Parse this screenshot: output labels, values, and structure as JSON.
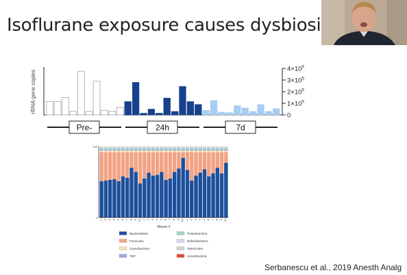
{
  "slide": {
    "title": "Isoflurane exposure causes dysbiosis",
    "citation": "Serbanescu et al., 2019 Anesth Analg"
  },
  "webcam": {
    "description_icon": "presenter-video-icon"
  },
  "colors": {
    "pre": "#ffffff",
    "h24": "#17418c",
    "d7": "#a9cdf2",
    "axis": "#222222",
    "bacteroidetes": "#1d4f9c",
    "firmicutes": "#f2a384",
    "cyanobacteria": "#f4e2b4",
    "tm7": "#a9a7d6",
    "proteobacteria": "#9fd6c6",
    "deferribacteres": "#d8d3ea",
    "tenericutes": "#d2d2d2",
    "actinobacteria": "#e34d38"
  },
  "chart_data": [
    {
      "type": "bar",
      "ylabel": "rRNA gene copies",
      "ylim": [
        0,
        400000
      ],
      "y_ticks": [
        0,
        100000,
        200000,
        300000,
        400000
      ],
      "y_tick_labels": [
        {
          "base": "0",
          "exp": ""
        },
        {
          "base": "1×10",
          "exp": "5"
        },
        {
          "base": "2×10",
          "exp": "5"
        },
        {
          "base": "3×10",
          "exp": "5"
        },
        {
          "base": "4×10",
          "exp": "5"
        }
      ],
      "groups": [
        {
          "label": "Pre-",
          "color_key": "pre",
          "values": [
            115000,
            115000,
            150000,
            30000,
            375000,
            30000,
            290000,
            40000,
            30000,
            65000
          ]
        },
        {
          "label": "24h",
          "color_key": "h24",
          "values": [
            115000,
            280000,
            15000,
            50000,
            15000,
            145000,
            30000,
            245000,
            115000,
            90000
          ]
        },
        {
          "label": "7d",
          "color_key": "d7",
          "values": [
            40000,
            125000,
            25000,
            20000,
            80000,
            60000,
            30000,
            90000,
            30000,
            55000
          ]
        }
      ]
    },
    {
      "type": "bar",
      "stacked": true,
      "xlabel": "Mouse #",
      "ylim": [
        0,
        100
      ],
      "y_ticks": [
        0,
        100
      ],
      "categories": [
        "1",
        "2",
        "3",
        "4",
        "5",
        "6",
        "7",
        "8",
        "9",
        "10",
        "1",
        "2",
        "3",
        "4",
        "5",
        "6",
        "7",
        "8",
        "9",
        "10",
        "1",
        "2",
        "3",
        "4",
        "5",
        "6",
        "7",
        "8",
        "9",
        "10"
      ],
      "series": [
        {
          "name": "Bacteroidetes",
          "color_key": "bacteroidetes",
          "values": [
            51,
            52,
            53,
            54,
            51,
            58,
            56,
            70,
            64,
            48,
            55,
            63,
            59,
            60,
            64,
            53,
            55,
            64,
            69,
            84,
            67,
            52,
            59,
            63,
            68,
            58,
            62,
            70,
            62,
            77
          ]
        },
        {
          "name": "Firmicutes",
          "color_key": "firmicutes",
          "values": [
            41,
            40,
            39,
            38,
            41,
            34,
            36,
            22,
            28,
            44,
            37,
            29,
            33,
            32,
            28,
            39,
            37,
            28,
            23,
            8,
            25,
            40,
            33,
            29,
            24,
            34,
            30,
            22,
            30,
            15
          ]
        },
        {
          "name": "Cyanobacteria",
          "color_key": "cyanobacteria",
          "values": [
            2,
            2,
            2,
            2,
            2,
            2,
            2,
            2,
            2,
            2,
            2,
            2,
            2,
            2,
            2,
            2,
            2,
            2,
            2,
            2,
            2,
            2,
            2,
            2,
            2,
            2,
            2,
            2,
            2,
            2
          ]
        },
        {
          "name": "TM7",
          "color_key": "tm7",
          "values": [
            2,
            2,
            2,
            2,
            2,
            2,
            2,
            2,
            2,
            2,
            2,
            2,
            2,
            2,
            2,
            2,
            2,
            2,
            2,
            2,
            2,
            2,
            2,
            2,
            2,
            2,
            2,
            2,
            2,
            2
          ]
        },
        {
          "name": "Proteobacteria",
          "color_key": "proteobacteria",
          "values": [
            2,
            2,
            2,
            2,
            2,
            2,
            2,
            2,
            2,
            2,
            2,
            2,
            2,
            2,
            2,
            2,
            2,
            2,
            2,
            2,
            2,
            2,
            2,
            2,
            2,
            2,
            2,
            2,
            2,
            2
          ]
        },
        {
          "name": "Deferribacteres",
          "color_key": "deferribacteres",
          "values": [
            1,
            1,
            1,
            1,
            1,
            1,
            1,
            1,
            1,
            1,
            1,
            1,
            1,
            1,
            1,
            1,
            1,
            1,
            1,
            1,
            1,
            1,
            1,
            1,
            1,
            1,
            1,
            1,
            1,
            1
          ]
        },
        {
          "name": "Tenericutes",
          "color_key": "tenericutes",
          "values": [
            1,
            1,
            1,
            1,
            1,
            1,
            1,
            1,
            1,
            1,
            1,
            1,
            1,
            1,
            1,
            1,
            1,
            1,
            1,
            1,
            1,
            1,
            1,
            1,
            1,
            1,
            1,
            1,
            1,
            1
          ]
        },
        {
          "name": "Actinobacteria",
          "color_key": "actinobacteria",
          "values": [
            0,
            0,
            0,
            0,
            0,
            0,
            0,
            0,
            0,
            0,
            0,
            0,
            0,
            0,
            0,
            0,
            0,
            0,
            0,
            0,
            0,
            0,
            0,
            0,
            0,
            0,
            0,
            0,
            0,
            0
          ]
        }
      ],
      "legend_position": "bottom"
    }
  ]
}
